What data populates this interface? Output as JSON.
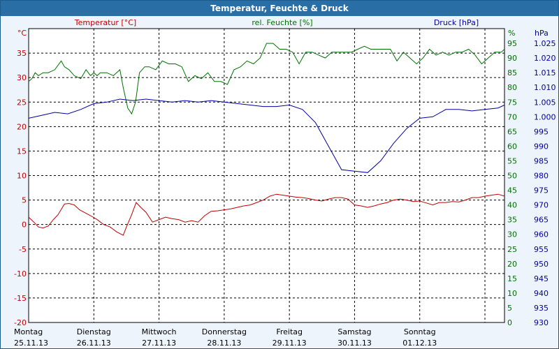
{
  "window": {
    "title": "Temperatur, Feuchte & Druck"
  },
  "colors": {
    "temperature": "#c00000",
    "humidity": "#007000",
    "pressure": "#0000a0",
    "grid": "#000000",
    "title_bg": "#2a6ea6"
  },
  "chart_data": {
    "type": "line",
    "title": "Temperatur, Feuchte & Druck",
    "axes": {
      "left": {
        "label": "Temperatur [°C]",
        "unit": "°C",
        "range": [
          -20,
          40
        ],
        "ticks": [
          35,
          30,
          25,
          20,
          15,
          10,
          5,
          0,
          -5,
          -10,
          -15,
          -20
        ]
      },
      "mid": {
        "label": "rel. Feuchte [%]",
        "unit": "%",
        "range": [
          0,
          100
        ],
        "ticks": [
          95,
          90,
          85,
          80,
          75,
          70,
          65,
          60,
          55,
          50,
          45,
          40,
          35,
          30,
          25,
          20,
          15,
          10,
          5,
          0
        ]
      },
      "right": {
        "label": "Druck [hPa]",
        "unit": "hPa",
        "range": [
          930,
          1030
        ],
        "ticks": [
          "1.025",
          "1.020",
          "1.015",
          "1.010",
          "1.005",
          "1.000",
          "995",
          "990",
          "985",
          "980",
          "975",
          "970",
          "965",
          "960",
          "955",
          "950",
          "945",
          "940",
          "935",
          "930"
        ]
      }
    },
    "x": {
      "range": [
        0,
        7.3
      ],
      "days": [
        {
          "name": "Montag",
          "date": "25.11.13"
        },
        {
          "name": "Dienstag",
          "date": "26.11.13"
        },
        {
          "name": "Mittwoch",
          "date": "27.11.13"
        },
        {
          "name": "Donnerstag",
          "date": "28.11.13"
        },
        {
          "name": "Freitag",
          "date": "29.11.13"
        },
        {
          "name": "Samstag",
          "date": "30.11.13"
        },
        {
          "name": "Sonntag",
          "date": "01.12.13"
        }
      ]
    },
    "series": [
      {
        "name": "Temperatur",
        "unit": "°C",
        "axis": "left",
        "x": [
          0,
          0.08,
          0.15,
          0.22,
          0.3,
          0.38,
          0.45,
          0.55,
          0.62,
          0.7,
          0.78,
          0.85,
          0.95,
          1.05,
          1.15,
          1.25,
          1.35,
          1.45,
          1.5,
          1.58,
          1.65,
          1.72,
          1.8,
          1.9,
          2.0,
          2.1,
          2.2,
          2.3,
          2.4,
          2.5,
          2.6,
          2.7,
          2.8,
          2.9,
          3.0,
          3.1,
          3.2,
          3.3,
          3.4,
          3.5,
          3.6,
          3.7,
          3.8,
          3.9,
          4.0,
          4.1,
          4.2,
          4.3,
          4.4,
          4.5,
          4.6,
          4.7,
          4.8,
          4.9,
          5.0,
          5.1,
          5.2,
          5.3,
          5.4,
          5.5,
          5.6,
          5.7,
          5.8,
          5.9,
          6.0,
          6.1,
          6.2,
          6.3,
          6.4,
          6.5,
          6.6,
          6.7,
          6.8,
          6.9,
          7.0,
          7.1,
          7.2,
          7.3
        ],
        "y": [
          1.5,
          0.5,
          -0.5,
          -0.7,
          -0.3,
          1.0,
          2.0,
          4.2,
          4.3,
          4.0,
          3.0,
          2.5,
          1.8,
          1.0,
          0.0,
          -0.5,
          -1.5,
          -2.2,
          -0.5,
          2.0,
          4.5,
          3.5,
          2.5,
          0.5,
          1.0,
          1.5,
          1.2,
          1.0,
          0.5,
          0.8,
          0.5,
          1.8,
          2.7,
          2.8,
          3.0,
          3.2,
          3.5,
          3.8,
          4.0,
          4.5,
          5.0,
          5.8,
          6.2,
          6.0,
          5.8,
          5.6,
          5.5,
          5.3,
          5.0,
          4.8,
          5.2,
          5.5,
          5.5,
          5.2,
          4.0,
          3.8,
          3.5,
          3.8,
          4.2,
          4.5,
          5.0,
          5.2,
          5.0,
          4.7,
          4.8,
          4.4,
          4.0,
          4.5,
          4.5,
          4.7,
          4.6,
          5.0,
          5.5,
          5.5,
          5.8,
          6.0,
          6.2,
          5.8
        ]
      },
      {
        "name": "rel. Feuchte",
        "unit": "%",
        "axis": "mid",
        "x": [
          0,
          0.05,
          0.1,
          0.15,
          0.22,
          0.3,
          0.4,
          0.5,
          0.55,
          0.62,
          0.7,
          0.8,
          0.88,
          0.95,
          1.0,
          1.05,
          1.1,
          1.2,
          1.3,
          1.4,
          1.45,
          1.52,
          1.58,
          1.64,
          1.7,
          1.78,
          1.85,
          1.95,
          2.05,
          2.15,
          2.25,
          2.35,
          2.45,
          2.55,
          2.65,
          2.75,
          2.85,
          2.95,
          3.05,
          3.15,
          3.25,
          3.35,
          3.45,
          3.55,
          3.65,
          3.75,
          3.85,
          3.95,
          4.05,
          4.15,
          4.25,
          4.35,
          4.45,
          4.55,
          4.65,
          4.75,
          4.85,
          4.95,
          5.05,
          5.15,
          5.25,
          5.35,
          5.45,
          5.55,
          5.65,
          5.75,
          5.85,
          5.95,
          6.05,
          6.15,
          6.25,
          6.35,
          6.45,
          6.55,
          6.65,
          6.75,
          6.85,
          6.95,
          7.05,
          7.15,
          7.25,
          7.3
        ],
        "y": [
          82,
          83,
          85,
          84,
          85,
          85,
          86,
          89,
          87,
          86,
          84,
          83,
          86,
          84,
          85,
          84,
          85,
          85,
          84,
          86,
          80,
          73,
          71,
          75,
          85,
          87,
          87,
          86,
          89,
          88,
          88,
          87,
          82,
          84,
          83,
          85,
          82,
          82,
          81,
          86,
          87,
          89,
          88,
          90,
          95,
          95,
          93,
          93,
          92,
          88,
          92,
          92,
          91,
          90,
          92,
          92,
          92,
          92,
          93,
          94,
          93,
          93,
          93,
          93,
          89,
          92,
          90,
          88,
          90,
          93,
          91,
          92,
          91,
          92,
          92,
          93,
          91,
          88,
          90,
          92,
          92,
          93
        ]
      },
      {
        "name": "Druck",
        "unit": "hPa",
        "axis": "right",
        "x": [
          0,
          0.2,
          0.4,
          0.6,
          0.8,
          1.0,
          1.2,
          1.4,
          1.6,
          1.8,
          2.0,
          2.2,
          2.4,
          2.6,
          2.8,
          3.0,
          3.2,
          3.4,
          3.6,
          3.8,
          4.0,
          4.2,
          4.4,
          4.6,
          4.8,
          5.0,
          5.2,
          5.4,
          5.6,
          5.8,
          6.0,
          6.2,
          6.4,
          6.6,
          6.8,
          7.0,
          7.2,
          7.3
        ],
        "y": [
          999.5,
          1000.5,
          1001.5,
          1001,
          1002.5,
          1004.5,
          1005,
          1006,
          1005.5,
          1006,
          1005.5,
          1005,
          1005.5,
          1005,
          1005.5,
          1005,
          1004.5,
          1004,
          1003.5,
          1003.5,
          1004,
          1002.5,
          998,
          990,
          982,
          981.5,
          981,
          985,
          991,
          996,
          999.5,
          1000,
          1002.5,
          1002.5,
          1002,
          1002.5,
          1003,
          1004
        ]
      }
    ]
  }
}
